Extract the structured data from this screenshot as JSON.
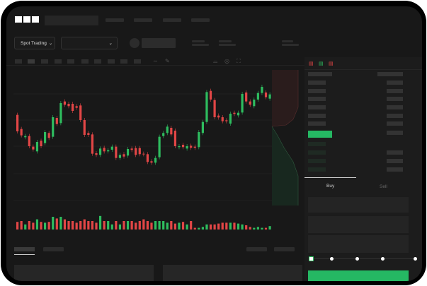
{
  "brand": {
    "logo": "OKX"
  },
  "header": {
    "market_select": "Spot Trading",
    "pair_select": "",
    "chevron_icon": "chevron-down-icon"
  },
  "toolbar": {
    "icons": [
      "line-icon",
      "pen-icon",
      "magnet-icon",
      "target-icon",
      "expand-icon"
    ]
  },
  "colors": {
    "up": "#2ebd5f",
    "down": "#e24646",
    "buy_button": "#25b863",
    "background": "#181818"
  },
  "order_book": {
    "view_icons": [
      "orderbook-both-icon",
      "orderbook-bids-icon",
      "orderbook-asks-icon"
    ]
  },
  "trade_panel": {
    "tabs": [
      {
        "label": "Buy",
        "active": true
      },
      {
        "label": "Sell",
        "active": false
      }
    ],
    "slider_percent": 0
  },
  "chart_data": {
    "type": "candlestick",
    "title": "",
    "xlabel": "",
    "ylabel": "",
    "candles": [
      [
        415,
        345
      ],
      [
        355,
        328
      ],
      [
        320,
        325
      ],
      [
        325,
        282
      ],
      [
        280,
        268
      ],
      [
        260,
        300
      ],
      [
        305,
        282
      ],
      [
        295,
        342
      ],
      [
        338,
        317
      ],
      [
        322,
        405
      ],
      [
        402,
        376
      ],
      [
        380,
        465
      ],
      [
        472,
        458
      ],
      [
        462,
        452
      ],
      [
        462,
        432
      ],
      [
        452,
        445
      ],
      [
        455,
        393
      ],
      [
        393,
        330
      ],
      [
        338,
        330
      ],
      [
        332,
        250
      ],
      [
        252,
        245
      ],
      [
        245,
        272
      ],
      [
        275,
        260
      ],
      [
        260,
        265
      ],
      [
        267,
        280
      ],
      [
        280,
        232
      ],
      [
        232,
        245
      ],
      [
        248,
        238
      ],
      [
        242,
        270
      ],
      [
        272,
        266
      ],
      [
        274,
        245
      ],
      [
        274,
        248
      ],
      [
        250,
        248
      ],
      [
        248,
        215
      ],
      [
        218,
        212
      ],
      [
        212,
        232
      ],
      [
        235,
        322
      ],
      [
        325,
        338
      ],
      [
        338,
        365
      ],
      [
        360,
        332
      ],
      [
        348,
        282
      ],
      [
        278,
        282
      ],
      [
        288,
        278
      ],
      [
        272,
        282
      ],
      [
        284,
        275
      ],
      [
        280,
        275
      ],
      [
        278,
        342
      ],
      [
        338,
        385
      ],
      [
        385,
        512
      ],
      [
        517,
        480
      ],
      [
        478,
        405
      ],
      [
        412,
        404
      ],
      [
        405,
        388
      ],
      [
        392,
        388
      ],
      [
        378,
        420
      ],
      [
        424,
        419
      ],
      [
        413,
        424
      ],
      [
        425,
        504
      ],
      [
        510,
        472
      ],
      [
        472,
        458
      ],
      [
        452,
        480
      ],
      [
        480,
        508
      ],
      [
        508,
        534
      ],
      [
        510,
        490
      ],
      [
        484,
        502
      ]
    ],
    "volumes": [
      9,
      10,
      6,
      10,
      8,
      12,
      9,
      8,
      9,
      15,
      13,
      15,
      12,
      10,
      10,
      8,
      10,
      12,
      10,
      10,
      8,
      16,
      10,
      10,
      6,
      10,
      6,
      10,
      10,
      10,
      8,
      10,
      12,
      10,
      8,
      10,
      10,
      10,
      8,
      10,
      7,
      8,
      9,
      6,
      10,
      2,
      2,
      3,
      6,
      6,
      6,
      7,
      8,
      8,
      8,
      8,
      7,
      6,
      5,
      3,
      2,
      3,
      2,
      2,
      4
    ]
  }
}
